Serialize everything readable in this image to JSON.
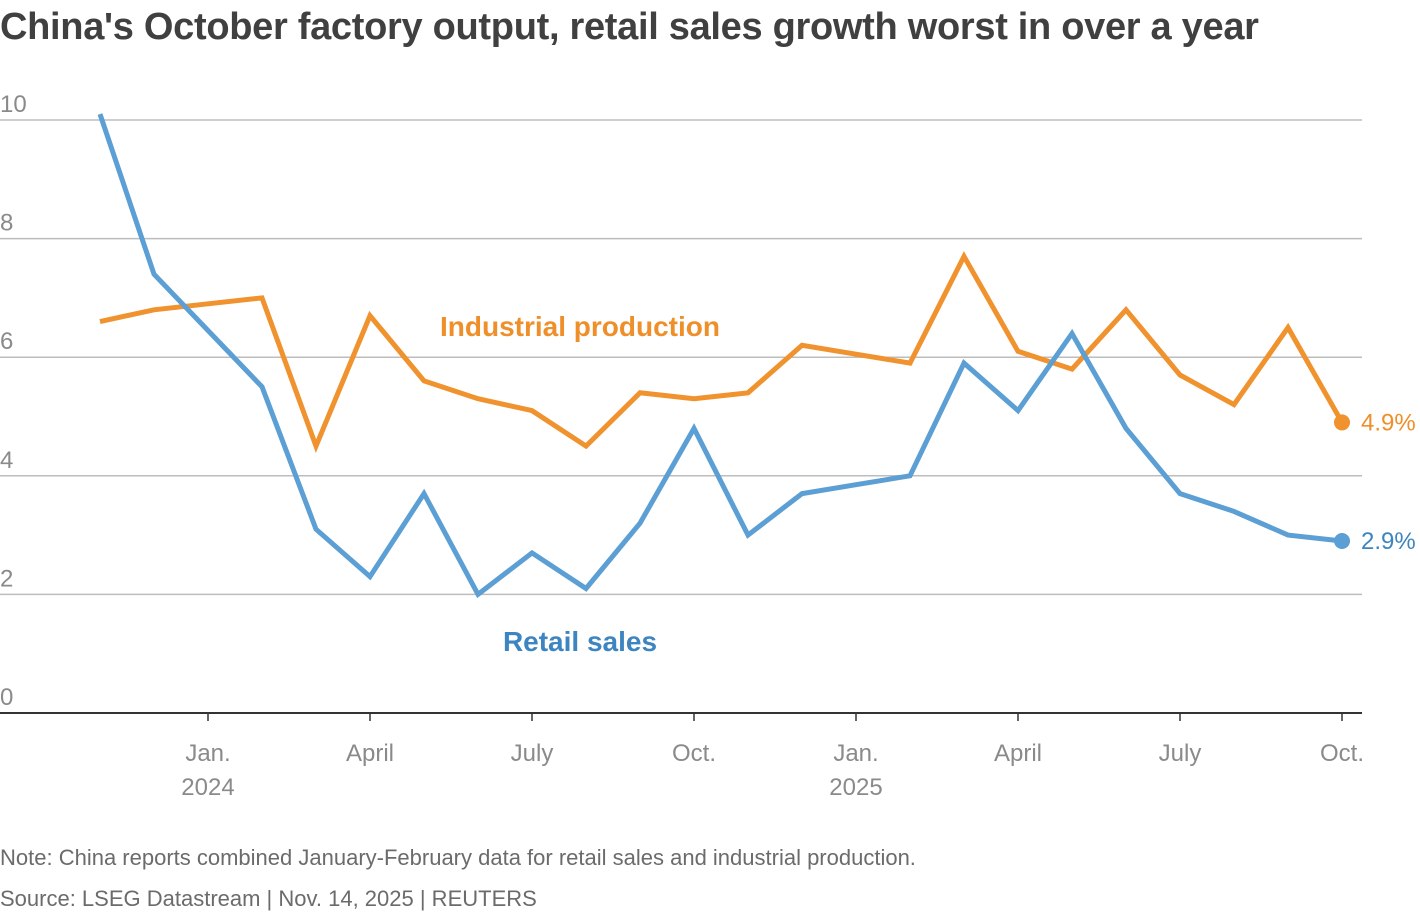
{
  "chart_data": {
    "type": "line",
    "title": "China's October factory output, retail sales growth worst in over a year",
    "ylabel": "",
    "xlabel": "",
    "ylim": [
      0,
      10
    ],
    "yticks": [
      "0",
      "2",
      "4",
      "6",
      "8",
      "10"
    ],
    "grid": true,
    "x": [
      "2023-11",
      "2023-12",
      "2024-01",
      "2024-02",
      "2024-03",
      "2024-04",
      "2024-05",
      "2024-06",
      "2024-07",
      "2024-08",
      "2024-09",
      "2024-10",
      "2024-11",
      "2024-12",
      "2025-01",
      "2025-02",
      "2025-03",
      "2025-04",
      "2025-05",
      "2025-06",
      "2025-07",
      "2025-08",
      "2025-09",
      "2025-10"
    ],
    "xticks": [
      {
        "month": "2024-01",
        "label": "Jan.",
        "year": "2024"
      },
      {
        "month": "2024-04",
        "label": "April",
        "year": ""
      },
      {
        "month": "2024-07",
        "label": "July",
        "year": ""
      },
      {
        "month": "2024-10",
        "label": "Oct.",
        "year": ""
      },
      {
        "month": "2025-01",
        "label": "Jan.",
        "year": "2025"
      },
      {
        "month": "2025-04",
        "label": "April",
        "year": ""
      },
      {
        "month": "2025-07",
        "label": "July",
        "year": ""
      },
      {
        "month": "2025-10",
        "label": "Oct.",
        "year": ""
      }
    ],
    "series": [
      {
        "name": "Industrial production",
        "color": "#f0922d",
        "label_color": "#ef8f2a",
        "values": [
          6.6,
          6.8,
          6.9,
          7.0,
          4.5,
          6.7,
          5.6,
          5.3,
          5.1,
          4.5,
          5.4,
          5.3,
          5.4,
          6.2,
          6.05,
          5.9,
          7.7,
          6.1,
          5.8,
          6.8,
          5.7,
          5.2,
          6.5,
          4.9
        ],
        "last_value_label": "4.9%",
        "label_anchor": {
          "x_month": "2024-09",
          "y": 5.5
        }
      },
      {
        "name": "Retail sales",
        "color": "#5b9fd4",
        "label_color": "#3d85c1",
        "values": [
          10.1,
          7.4,
          6.45,
          5.5,
          3.1,
          2.3,
          3.7,
          2.0,
          2.7,
          2.1,
          3.2,
          4.8,
          3.0,
          3.7,
          3.85,
          4.0,
          5.9,
          5.1,
          6.4,
          4.8,
          3.7,
          3.4,
          3.0,
          2.9
        ],
        "last_value_label": "2.9%",
        "label_anchor": {
          "x_month": "2024-09",
          "y": 0.0
        }
      }
    ]
  },
  "note": "Note: China reports combined January-February data for retail sales and industrial production.",
  "source": "Source: LSEG Datastream | Nov. 14, 2025 | REUTERS"
}
